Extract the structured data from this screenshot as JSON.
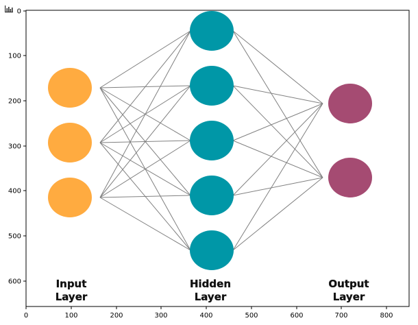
{
  "toolbar": {
    "icon": "bar-chart-icon"
  },
  "axes": {
    "x_ticks": [
      "0",
      "100",
      "200",
      "300",
      "400",
      "500",
      "600",
      "700",
      "800"
    ],
    "y_ticks": [
      "0",
      "100",
      "200",
      "300",
      "400",
      "500",
      "600"
    ]
  },
  "diagram": {
    "layers": [
      {
        "label_line1": "Input",
        "label_line2": "Layer",
        "color": "#ffab40",
        "neurons": 3
      },
      {
        "label_line1": "Hidden",
        "label_line2": "Layer",
        "color": "#0097a7",
        "neurons": 5
      },
      {
        "label_line1": "Output",
        "label_line2": "Layer",
        "color": "#a54b72",
        "neurons": 2
      }
    ],
    "connection_color": "#808080"
  }
}
